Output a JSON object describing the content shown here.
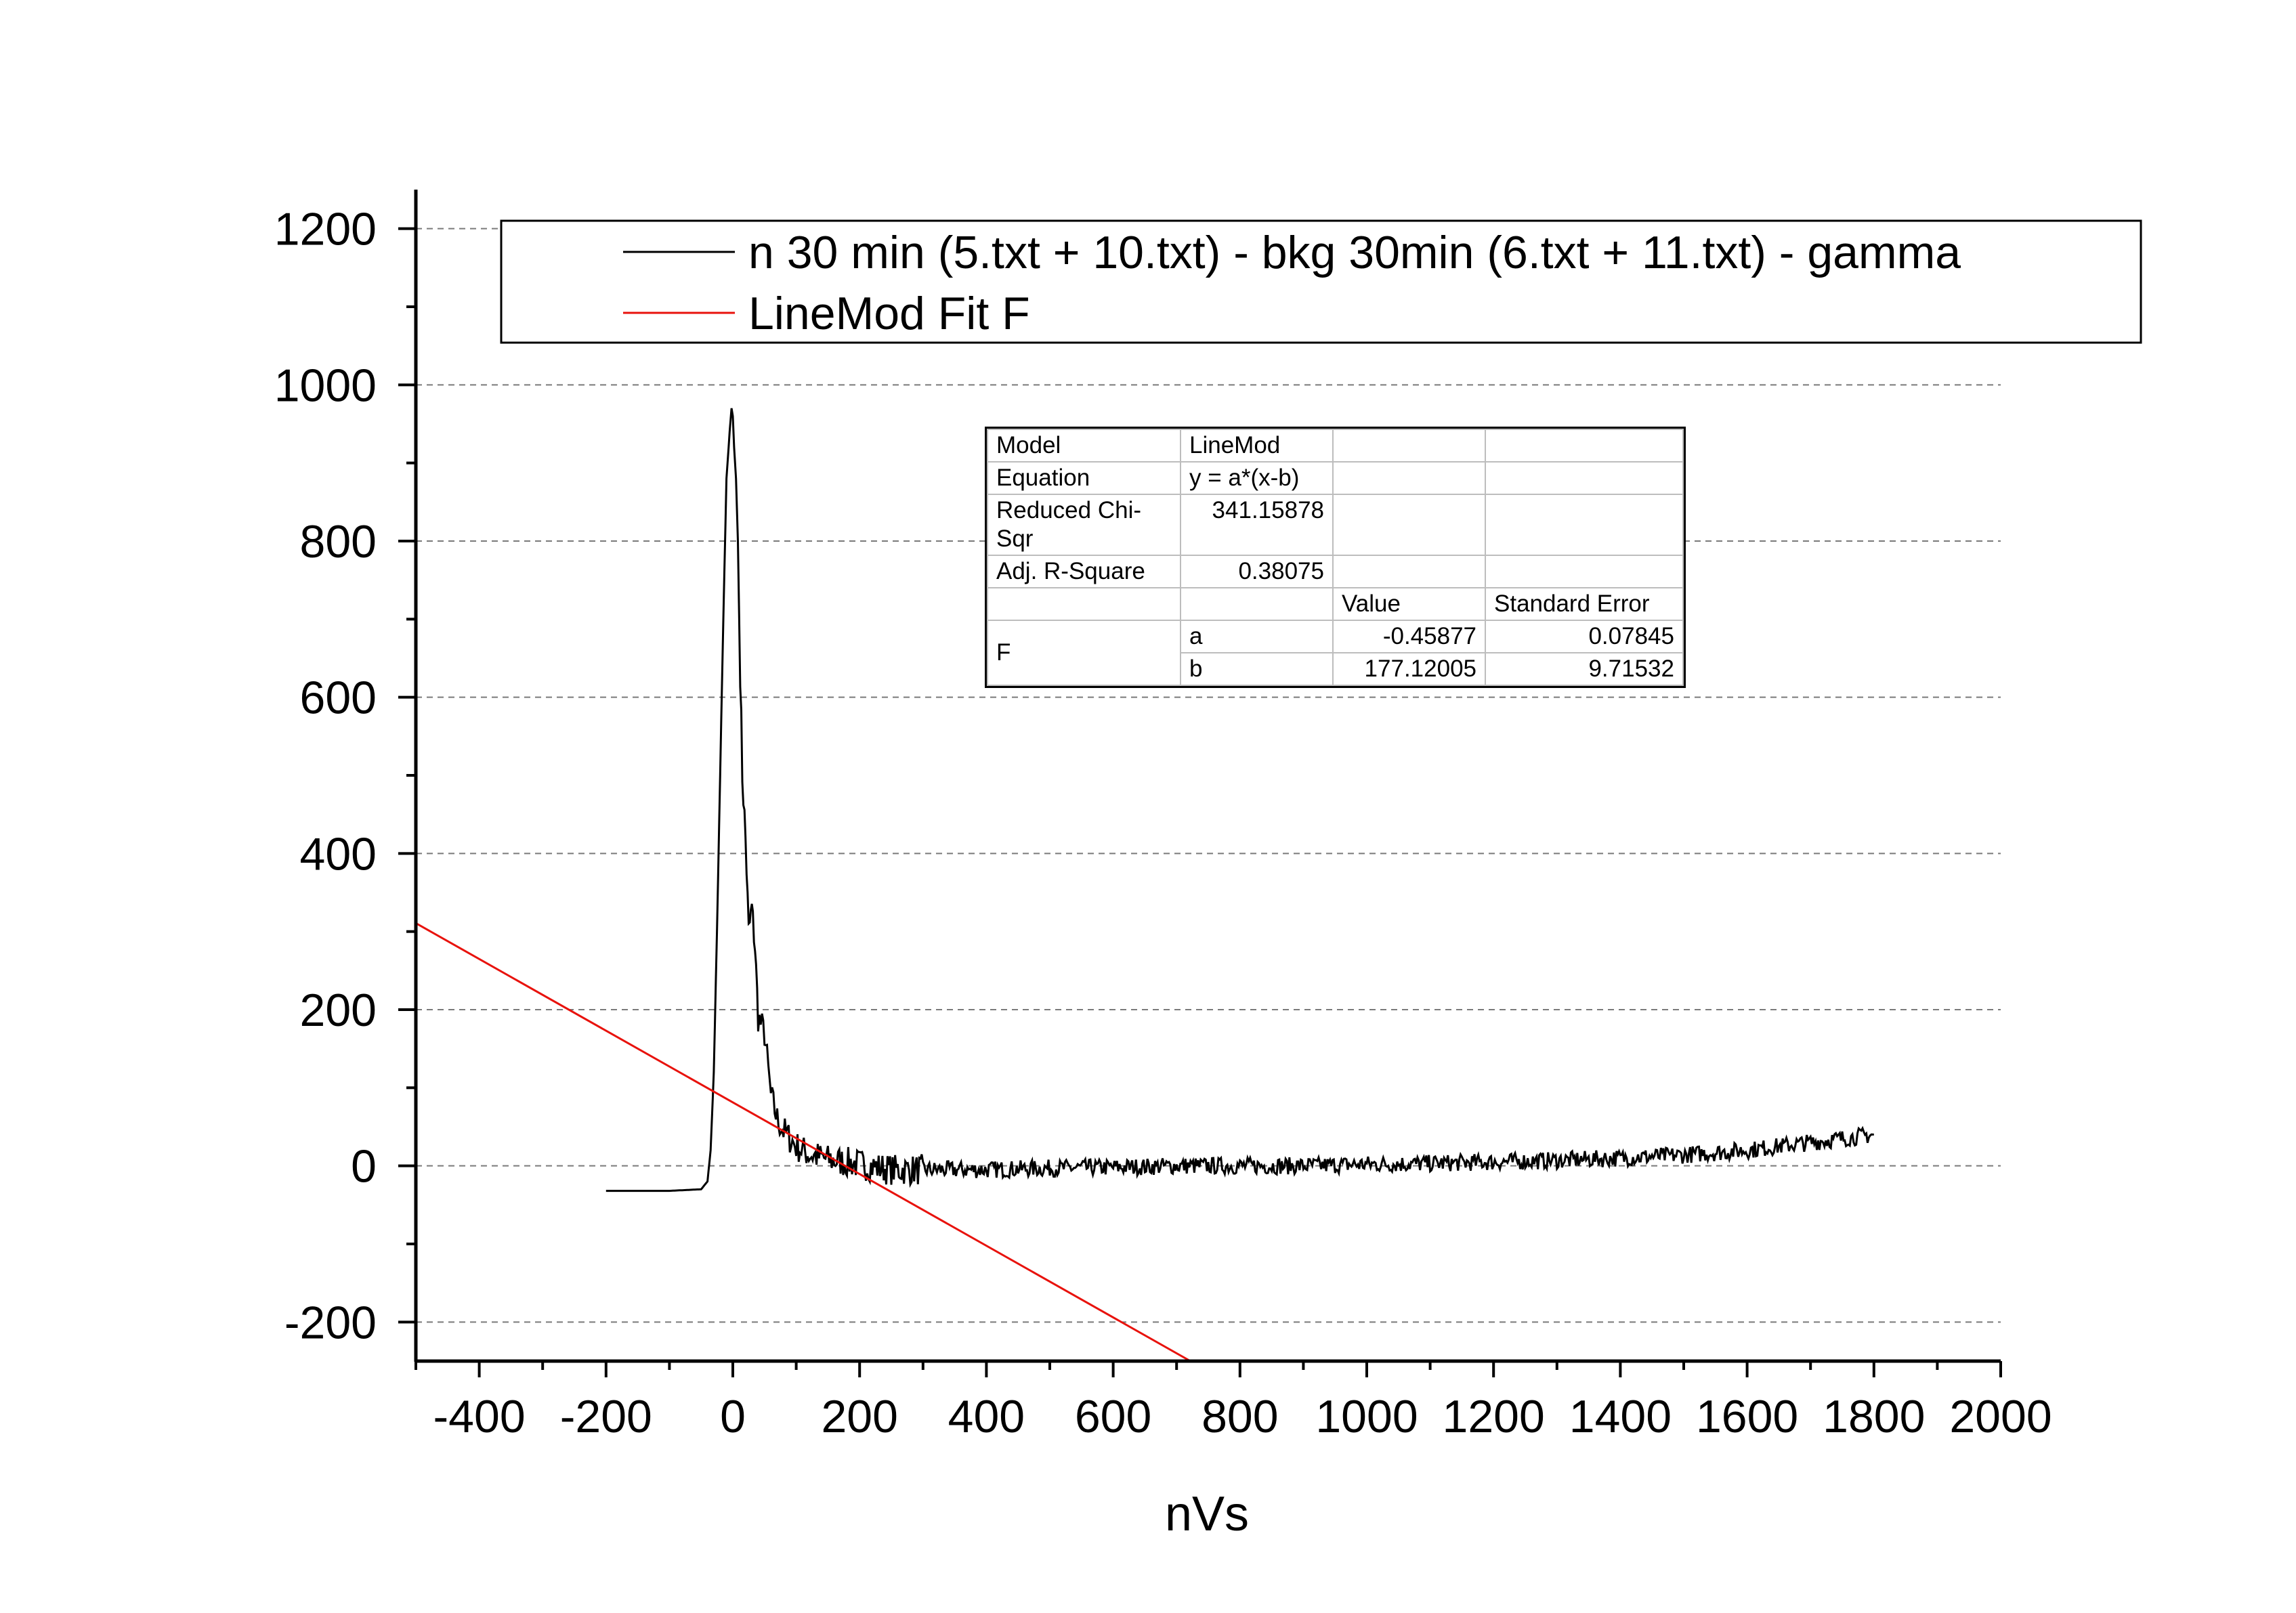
{
  "chart_data": {
    "type": "line",
    "xlabel": "nVs",
    "ylabel": "",
    "xlim": [
      -500,
      2000
    ],
    "ylim": [
      -250,
      1250
    ],
    "x_ticks": [
      -400,
      -200,
      0,
      200,
      400,
      600,
      800,
      1000,
      1200,
      1400,
      1600,
      1800,
      2000
    ],
    "y_ticks": [
      -200,
      0,
      200,
      400,
      600,
      800,
      1000,
      1200
    ],
    "x_tick_labels": [
      "-400",
      "-200",
      "0",
      "200",
      "400",
      "600",
      "800",
      "1000",
      "1200",
      "1400",
      "1600",
      "1800",
      "2000"
    ],
    "y_tick_labels": [
      "-200",
      "0",
      "200",
      "400",
      "600",
      "800",
      "1000",
      "1200"
    ],
    "grid": "horizontal dashed",
    "legend_position": "top",
    "series": [
      {
        "name": "n 30 min (5.txt + 10.txt) - bkg 30min (6.txt + 11.txt) - gamma",
        "color": "#000000",
        "x": [
          -200,
          -100,
          -50,
          -40,
          -35,
          -30,
          -25,
          -20,
          -15,
          -10,
          -5,
          -2,
          0,
          2,
          5,
          8,
          10,
          15,
          20,
          25,
          30,
          35,
          40,
          50,
          60,
          70,
          80,
          100,
          120,
          150,
          200,
          250,
          300,
          400,
          500,
          600,
          700,
          800,
          900,
          1000,
          1100,
          1200,
          1300,
          1400,
          1500,
          1600,
          1650,
          1700,
          1750,
          1800
        ],
        "y": [
          -32,
          -32,
          -30,
          -20,
          20,
          120,
          300,
          500,
          700,
          880,
          940,
          970,
          960,
          920,
          880,
          800,
          700,
          500,
          420,
          300,
          330,
          280,
          190,
          170,
          90,
          60,
          45,
          25,
          15,
          8,
          2,
          -5,
          -5,
          -5,
          -3,
          -2,
          0,
          0,
          0,
          2,
          3,
          5,
          7,
          10,
          14,
          20,
          25,
          30,
          35,
          40
        ]
      },
      {
        "name": "LineMod Fit F",
        "color": "#e8120c",
        "x": [
          -500,
          720
        ],
        "y": [
          310.68,
          -249.12
        ]
      }
    ],
    "fit_table": {
      "model_label": "Model",
      "model_value": "LineMod",
      "equation_label": "Equation",
      "equation_value": "y = a*(x-b)",
      "chisqr_label": "Reduced Chi-Sqr",
      "chisqr_value": "341.15878",
      "r2_label": "Adj. R-Square",
      "r2_value": "0.38075",
      "value_header": "Value",
      "stderr_header": "Standard Error",
      "group_label": "F",
      "params": [
        {
          "name": "a",
          "value": "-0.45877",
          "stderr": "0.07845"
        },
        {
          "name": "b",
          "value": "177.12005",
          "stderr": "9.71532"
        }
      ]
    }
  }
}
